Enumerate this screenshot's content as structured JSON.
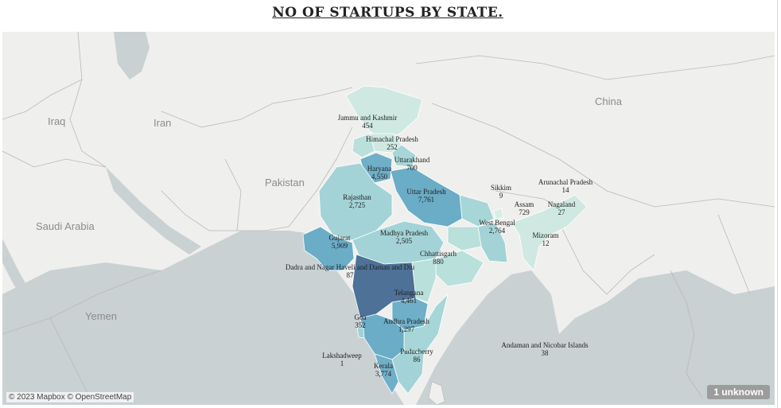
{
  "title": "NO OF STARTUPS BY STATE.",
  "attribution": "© 2023 Mapbox © OpenStreetMap",
  "unknown_badge": "1 unknown",
  "countries": {
    "iraq": "Iraq",
    "iran": "Iran",
    "pakistan": "Pakistan",
    "china": "China",
    "saudi": "Saudi Arabia",
    "yemen": "Yemen"
  },
  "states": [
    {
      "name": "Jammu and Kashmir",
      "value": "454"
    },
    {
      "name": "Himachal Pradesh",
      "value": "252"
    },
    {
      "name": "Uttarakhand",
      "value": "700"
    },
    {
      "name": "Haryana",
      "value": "4,550"
    },
    {
      "name": "Uttar Pradesh",
      "value": "7,761"
    },
    {
      "name": "Rajasthan",
      "value": "2,725"
    },
    {
      "name": "Sikkim",
      "value": "9"
    },
    {
      "name": "Arunachal Pradesh",
      "value": "14"
    },
    {
      "name": "Assam",
      "value": "729"
    },
    {
      "name": "Nagaland",
      "value": "27"
    },
    {
      "name": "West Bengal",
      "value": "2,764"
    },
    {
      "name": "Mizoram",
      "value": "12"
    },
    {
      "name": "Gujarat",
      "value": "5,909"
    },
    {
      "name": "Madhya Pradesh",
      "value": "2,505"
    },
    {
      "name": "Chhattisgarh",
      "value": "880"
    },
    {
      "name": "Dadra and Nagar Haveli and Daman and Diu",
      "value": "87"
    },
    {
      "name": "Telangana",
      "value": "4,461"
    },
    {
      "name": "Goa",
      "value": "352"
    },
    {
      "name": "Andhra Pradesh",
      "value": "1,297"
    },
    {
      "name": "Puducherry",
      "value": "86"
    },
    {
      "name": "Lakshadweep",
      "value": "1"
    },
    {
      "name": "Kerala",
      "value": "3,774"
    },
    {
      "name": "Andaman and Nicobar Islands",
      "value": "38"
    }
  ],
  "colors": {
    "water": "#c9d1d3",
    "land": "#efefed",
    "border": "#b5b5b5",
    "low": "#d3ebe4",
    "mid": "#9fd0d5",
    "high": "#6bacc7",
    "top": "#4d7197"
  }
}
